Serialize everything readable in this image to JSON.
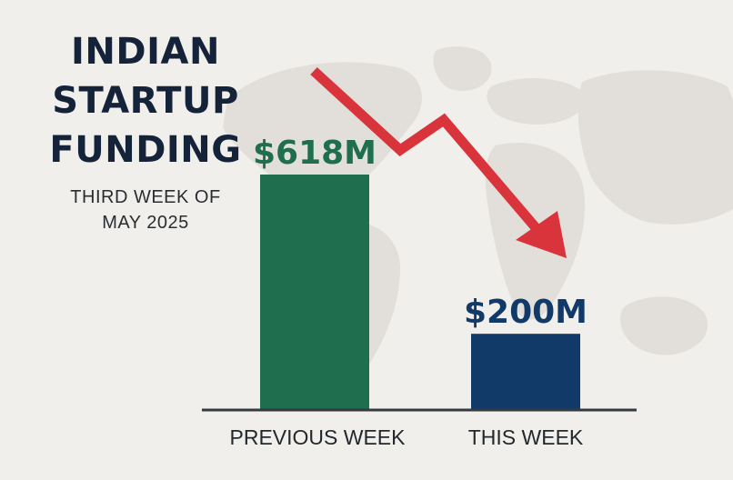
{
  "title_lines": [
    "INDIAN",
    "STARTUP",
    "FUNDING"
  ],
  "subtitle_lines": [
    "THIRD WEEK OF",
    "MAY 2025"
  ],
  "colors": {
    "background": "#f1efeb",
    "map": "#e2dfda",
    "title": "#14233a",
    "arrow": "#d9333b",
    "baseline": "#343a40"
  },
  "decoration": {
    "trend_arrow": "down",
    "background_map": "world-map"
  },
  "chart_data": {
    "type": "bar",
    "unit": "$M",
    "categories": [
      "PREVIOUS WEEK",
      "THIS WEEK"
    ],
    "values": [
      618,
      200
    ],
    "value_labels": [
      "$618M",
      "$200M"
    ],
    "bar_colors": [
      "#1f6e4d",
      "#123a69"
    ],
    "label_colors": [
      "#1f6e4d",
      "#123a69"
    ],
    "ylim": [
      0,
      618
    ],
    "grid": false,
    "title": "INDIAN STARTUP FUNDING",
    "xlabel": "",
    "ylabel": ""
  }
}
